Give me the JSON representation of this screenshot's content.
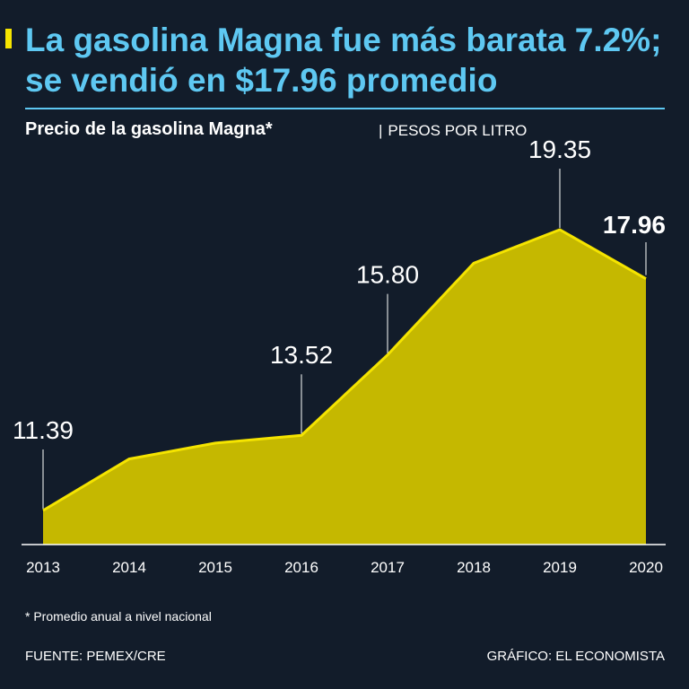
{
  "header": {
    "title": "La gasolina Magna fue más barata 7.2%; se vendió en $17.96 promedio",
    "subtitle": "Precio de la gasolina Magna*",
    "units_separator": "|",
    "units": "PESOS POR LITRO"
  },
  "footer": {
    "footnote": "* Promedio anual a nivel nacional",
    "source": "FUENTE: PEMEX/CRE",
    "credit": "GRÁFICO: EL ECONOMISTA"
  },
  "colors": {
    "background": "#121c2a",
    "title": "#5ec8f2",
    "area_fill": "#c5b800",
    "line": "#f5e400",
    "text": "#ffffff"
  },
  "chart_data": {
    "type": "area",
    "title": "Precio de la gasolina Magna*",
    "xlabel": "",
    "ylabel": "PESOS POR LITRO",
    "categories": [
      "2013",
      "2014",
      "2015",
      "2016",
      "2017",
      "2018",
      "2019",
      "2020"
    ],
    "values": [
      11.39,
      12.85,
      13.3,
      13.52,
      15.8,
      18.4,
      19.35,
      17.96
    ],
    "labels": [
      {
        "index": 0,
        "text": "11.39",
        "bold": false
      },
      {
        "index": 3,
        "text": "13.52",
        "bold": false
      },
      {
        "index": 4,
        "text": "15.80",
        "bold": false
      },
      {
        "index": 6,
        "text": "19.35",
        "bold": false
      },
      {
        "index": 7,
        "text": "17.96",
        "bold": true
      }
    ],
    "grid": false,
    "legend": "none"
  }
}
